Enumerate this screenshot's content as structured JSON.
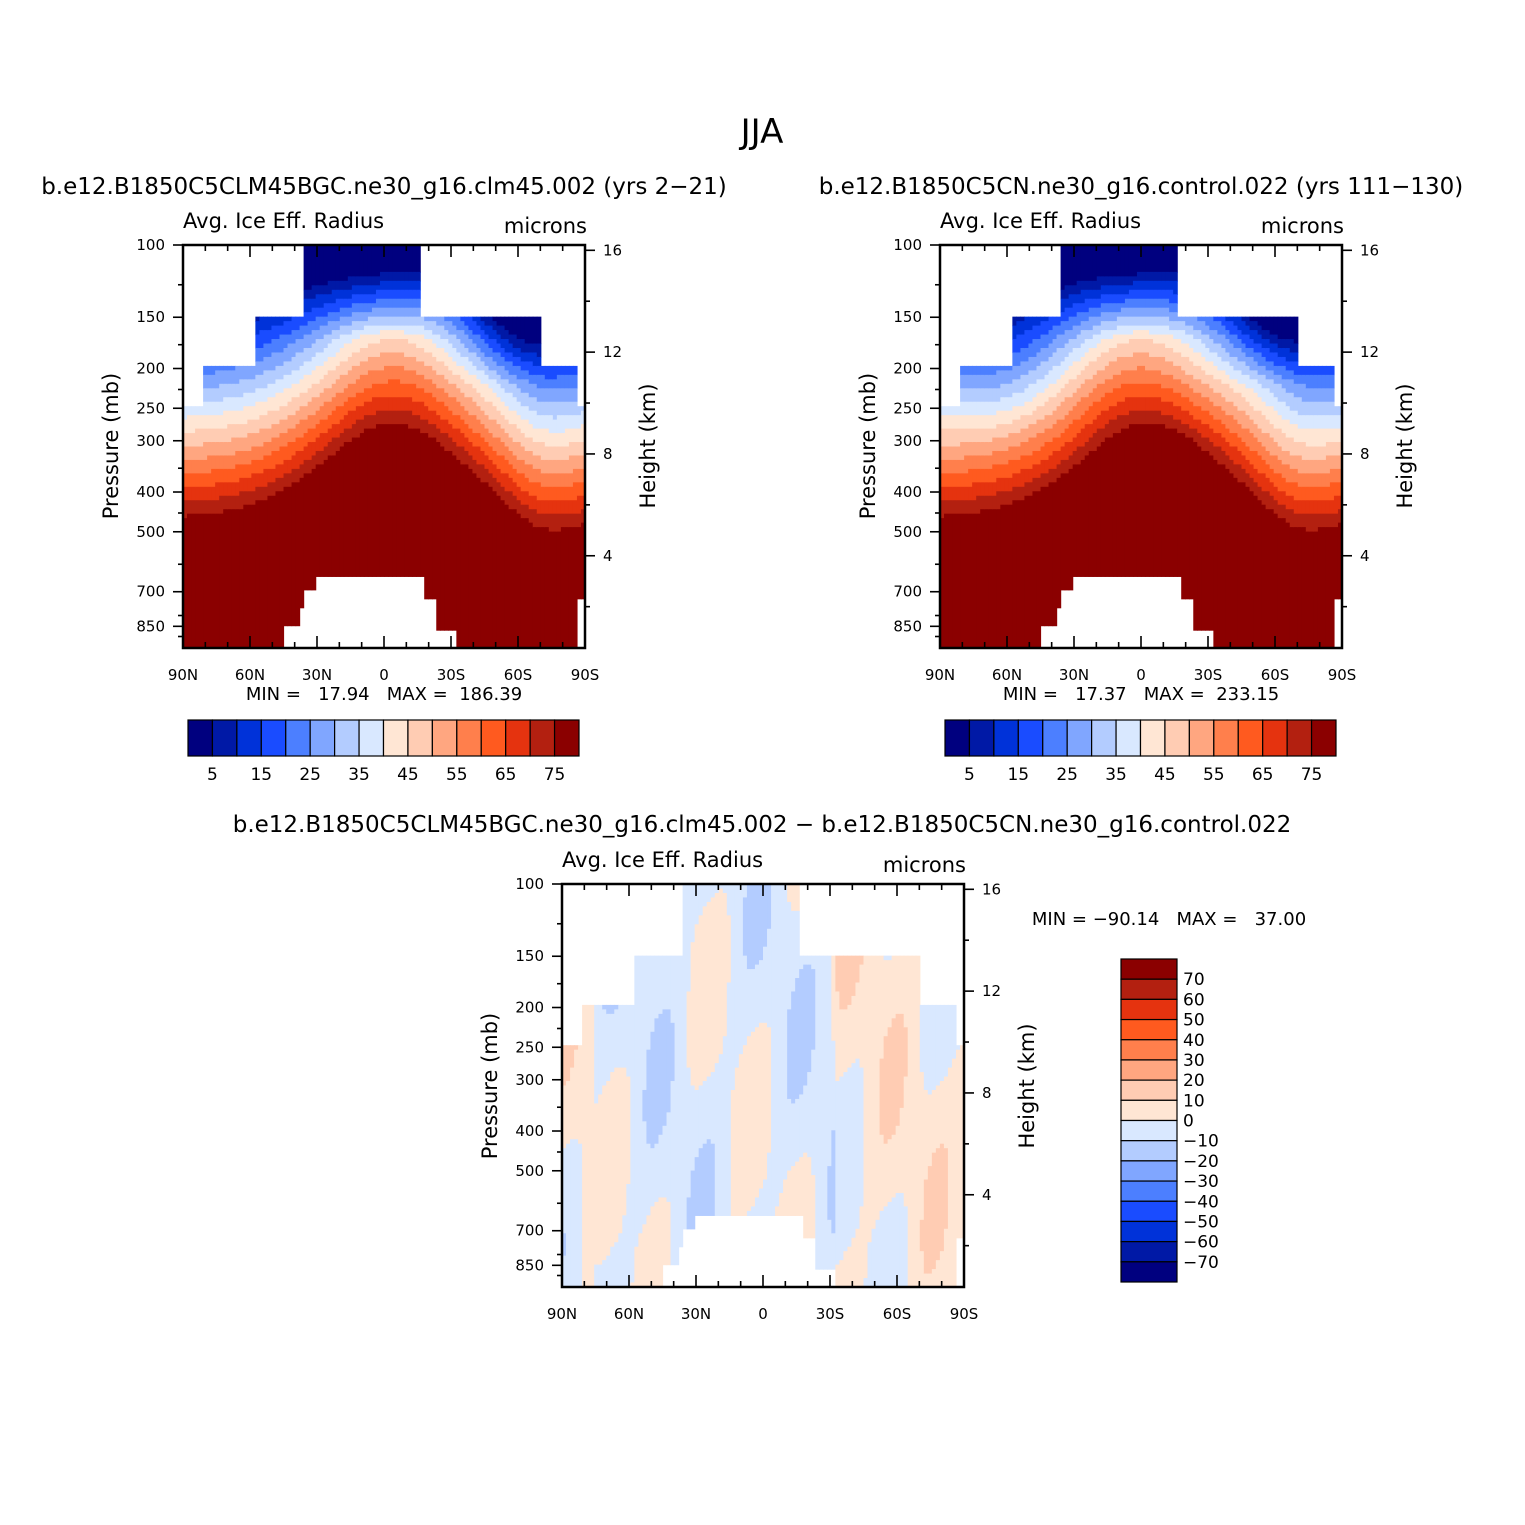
{
  "figure": {
    "title": "JJA"
  },
  "chart_data": [
    {
      "type": "heatmap",
      "case_title": "b.e12.B1850C5CLM45BGC.ne30_g16.clm45.002 (yrs 2−21)",
      "variable": "Avg. Ice Eff. Radius",
      "units": "microns",
      "ylabel": "Pressure (mb)",
      "ylabel_right": "Height (km)",
      "x_ticks": [
        "90N",
        "60N",
        "30N",
        "0",
        "30S",
        "60S",
        "90S"
      ],
      "y_ticks": [
        "100",
        "150",
        "200",
        "250",
        "300",
        "400",
        "500",
        "700",
        "850"
      ],
      "y_ticks_right": [
        "16",
        "12",
        "8",
        "4"
      ],
      "min_text": "MIN =   17.94   MAX =  186.39",
      "colorbar_levels": [
        5,
        10,
        15,
        20,
        25,
        30,
        35,
        40,
        45,
        50,
        55,
        60,
        65,
        70,
        75
      ],
      "colorbar_labels": [
        "5",
        "15",
        "25",
        "35",
        "45",
        "55",
        "65",
        "75"
      ],
      "variant": "a"
    },
    {
      "type": "heatmap",
      "case_title": "b.e12.B1850C5CN.ne30_g16.control.022 (yrs 111−130)",
      "variable": "Avg. Ice Eff. Radius",
      "units": "microns",
      "ylabel": "Pressure (mb)",
      "ylabel_right": "Height (km)",
      "x_ticks": [
        "90N",
        "60N",
        "30N",
        "0",
        "30S",
        "60S",
        "90S"
      ],
      "y_ticks": [
        "100",
        "150",
        "200",
        "250",
        "300",
        "400",
        "500",
        "700",
        "850"
      ],
      "y_ticks_right": [
        "16",
        "12",
        "8",
        "4"
      ],
      "min_text": "MIN =   17.37   MAX =  233.15",
      "colorbar_levels": [
        5,
        10,
        15,
        20,
        25,
        30,
        35,
        40,
        45,
        50,
        55,
        60,
        65,
        70,
        75
      ],
      "colorbar_labels": [
        "5",
        "15",
        "25",
        "35",
        "45",
        "55",
        "65",
        "75"
      ],
      "variant": "b"
    },
    {
      "type": "heatmap",
      "case_title": "b.e12.B1850C5CLM45BGC.ne30_g16.clm45.002 − b.e12.B1850C5CN.ne30_g16.control.022",
      "variable": "Avg. Ice Eff. Radius",
      "units": "microns",
      "ylabel": "Pressure (mb)",
      "ylabel_right": "Height (km)",
      "x_ticks": [
        "90N",
        "60N",
        "30N",
        "0",
        "30S",
        "60S",
        "90S"
      ],
      "y_ticks": [
        "100",
        "150",
        "200",
        "250",
        "300",
        "400",
        "500",
        "700",
        "850"
      ],
      "y_ticks_right": [
        "16",
        "12",
        "8",
        "4"
      ],
      "min_text": "MIN = −90.14   MAX =   37.00",
      "colorbar_levels": [
        70,
        60,
        50,
        40,
        30,
        20,
        10,
        0,
        -10,
        -20,
        -30,
        -40,
        -50,
        -60,
        -70
      ],
      "colorbar_labels": [
        "70",
        "60",
        "50",
        "40",
        "30",
        "20",
        "10",
        "0",
        "−10",
        "−20",
        "−30",
        "−40",
        "−50",
        "−60",
        "−70"
      ],
      "variant": "diff"
    }
  ],
  "colors": {
    "palette": [
      "#00007f",
      "#0019a6",
      "#0032d9",
      "#1a4cff",
      "#4c7fff",
      "#80a6ff",
      "#b3ccff",
      "#d9e8ff",
      "#ffe6d4",
      "#ffccb3",
      "#ffa680",
      "#ff7f4c",
      "#ff5a1f",
      "#e5330f",
      "#b32010",
      "#8b0000"
    ]
  }
}
